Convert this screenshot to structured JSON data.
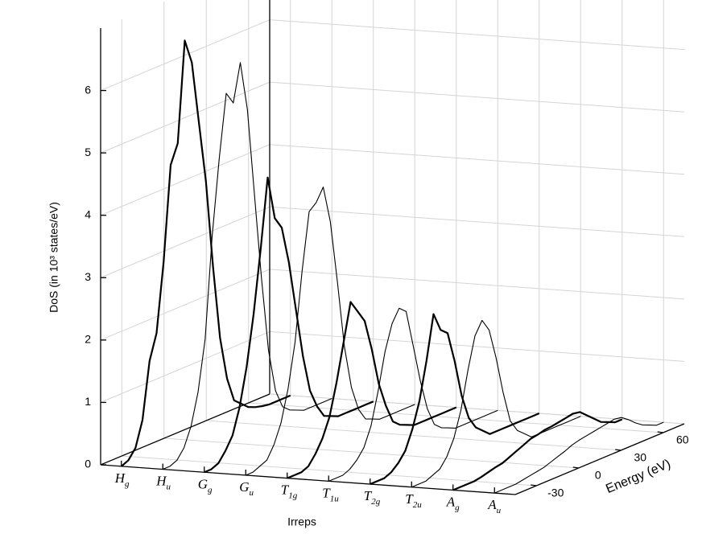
{
  "chart_data": {
    "type": "waterfall3d",
    "xlabel": "Irreps",
    "ylabel": "DoS (in 10³ states/eV)",
    "zlabel": "Energy (eV)",
    "categories": [
      "Hg",
      "Hu",
      "Gg",
      "Gu",
      "T1g",
      "T1u",
      "T2g",
      "T2u",
      "Ag",
      "Au"
    ],
    "x": [
      -45,
      -40,
      -35,
      -30,
      -25,
      -20,
      -15,
      -10,
      -5,
      0,
      5,
      10,
      15,
      20,
      25,
      30,
      35,
      40,
      45,
      50,
      55,
      60,
      65,
      70,
      75
    ],
    "zlim": [
      -45,
      75
    ],
    "zticks": [
      -30,
      0,
      30,
      60
    ],
    "ylim": [
      0,
      7
    ],
    "yticks": [
      0,
      1,
      2,
      3,
      4,
      5,
      6
    ],
    "grid": true,
    "series": [
      {
        "name": "Hg",
        "color": "#000000",
        "line_width": 2.2,
        "values": [
          0,
          0.05,
          0.2,
          0.6,
          1.5,
          1.9,
          3.0,
          4.5,
          4.8,
          6.4,
          6.0,
          5.0,
          4.0,
          2.6,
          1.4,
          0.7,
          0.3,
          0.2,
          0.1,
          0.05,
          0.02,
          0,
          0,
          0,
          0
        ]
      },
      {
        "name": "Hu",
        "color": "#000000",
        "line_width": 1.1,
        "values": [
          0,
          0,
          0.05,
          0.2,
          0.5,
          1.0,
          1.8,
          3.4,
          4.6,
          5.6,
          5.4,
          6.0,
          5.2,
          3.8,
          2.4,
          1.2,
          0.5,
          0.2,
          0.1,
          0.05,
          0,
          0,
          0,
          0,
          0
        ]
      },
      {
        "name": "Gg",
        "color": "#000000",
        "line_width": 2.2,
        "values": [
          0,
          0,
          0.05,
          0.2,
          0.4,
          0.8,
          1.4,
          2.2,
          3.2,
          4.3,
          3.6,
          3.4,
          2.8,
          2.0,
          1.2,
          0.6,
          0.3,
          0.1,
          0.05,
          0,
          0,
          0,
          0,
          0,
          0
        ]
      },
      {
        "name": "Gu",
        "color": "#000000",
        "line_width": 1.1,
        "values": [
          0,
          0,
          0.05,
          0.1,
          0.3,
          0.6,
          1.1,
          1.8,
          2.9,
          3.8,
          3.9,
          4.1,
          3.5,
          2.5,
          1.4,
          0.7,
          0.3,
          0.1,
          0.05,
          0,
          0,
          0,
          0,
          0,
          0
        ]
      },
      {
        "name": "T1g",
        "color": "#000000",
        "line_width": 2.2,
        "values": [
          0,
          0,
          0,
          0.05,
          0.2,
          0.4,
          0.7,
          1.2,
          1.8,
          2.4,
          2.2,
          2.0,
          1.5,
          0.9,
          0.5,
          0.2,
          0.1,
          0.05,
          0,
          0,
          0,
          0,
          0,
          0,
          0
        ]
      },
      {
        "name": "T1u",
        "color": "#000000",
        "line_width": 1.1,
        "values": [
          0,
          0,
          0,
          0.05,
          0.15,
          0.3,
          0.6,
          1.1,
          1.7,
          2.1,
          2.3,
          2.2,
          1.6,
          1.0,
          0.5,
          0.2,
          0.1,
          0.05,
          0,
          0,
          0,
          0,
          0,
          0,
          0
        ]
      },
      {
        "name": "T2g",
        "color": "#000000",
        "line_width": 2.2,
        "values": [
          0,
          0,
          0,
          0.05,
          0.15,
          0.3,
          0.6,
          1.0,
          1.6,
          2.3,
          2.0,
          1.9,
          1.4,
          0.8,
          0.4,
          0.2,
          0.1,
          0,
          0,
          0,
          0,
          0,
          0,
          0,
          0
        ]
      },
      {
        "name": "T2u",
        "color": "#000000",
        "line_width": 1.1,
        "values": [
          0,
          0,
          0,
          0.05,
          0.1,
          0.25,
          0.5,
          0.9,
          1.5,
          2.0,
          2.2,
          2.0,
          1.5,
          0.9,
          0.4,
          0.2,
          0.1,
          0,
          0,
          0,
          0,
          0,
          0,
          0,
          0
        ]
      },
      {
        "name": "Ag",
        "color": "#000000",
        "line_width": 2.2,
        "values": [
          0,
          0,
          0,
          0,
          0.02,
          0.05,
          0.08,
          0.1,
          0.15,
          0.2,
          0.25,
          0.3,
          0.32,
          0.35,
          0.36,
          0.38,
          0.4,
          0.42,
          0.4,
          0.3,
          0.2,
          0.1,
          0.05,
          0,
          0
        ]
      },
      {
        "name": "Au",
        "color": "#000000",
        "line_width": 1.1,
        "values": [
          0,
          0,
          0,
          0,
          0.02,
          0.04,
          0.06,
          0.08,
          0.12,
          0.16,
          0.2,
          0.25,
          0.28,
          0.3,
          0.32,
          0.34,
          0.36,
          0.38,
          0.36,
          0.28,
          0.18,
          0.1,
          0.05,
          0,
          0
        ]
      }
    ]
  }
}
